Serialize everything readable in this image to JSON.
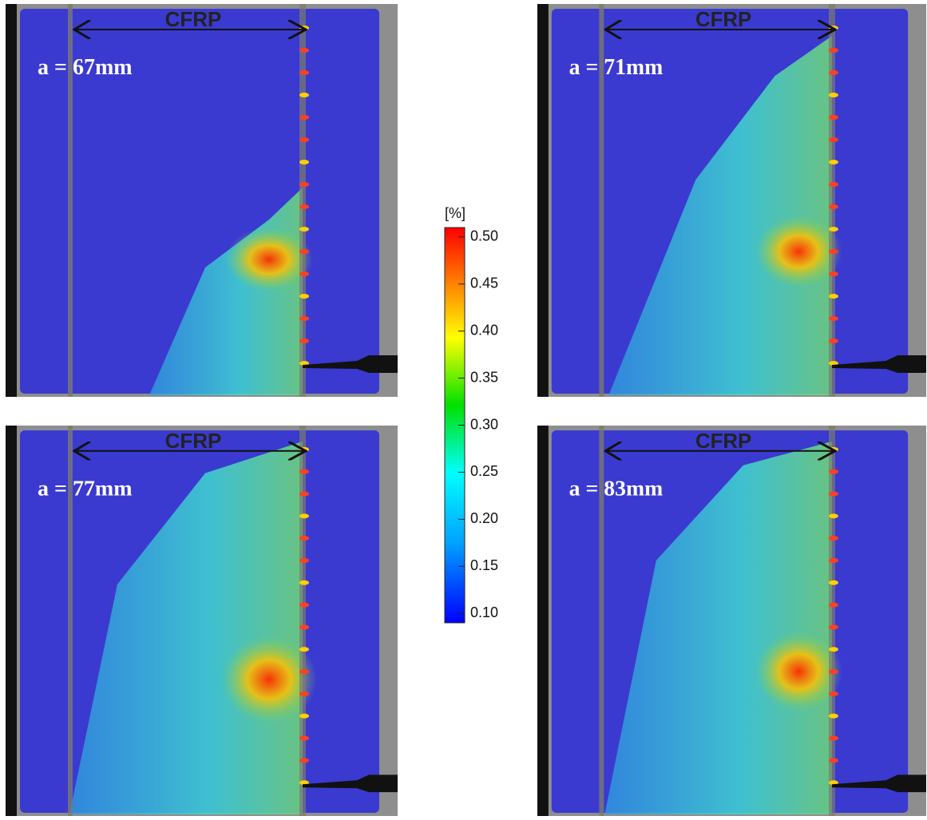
{
  "panels": [
    {
      "label": "CFRP",
      "crack_length": "a = 67mm"
    },
    {
      "label": "CFRP",
      "crack_length": "a = 71mm"
    },
    {
      "label": "CFRP",
      "crack_length": "a = 77mm"
    },
    {
      "label": "CFRP",
      "crack_length": "a = 83mm"
    }
  ],
  "colorbar": {
    "unit": "[%]",
    "lim": [
      0.09,
      0.51
    ],
    "ticks": [
      {
        "value": 0.5,
        "label": "0.50"
      },
      0.45,
      {
        "value": 0.4,
        "label": "0.40"
      },
      0.35,
      {
        "value": 0.3,
        "label": "0.30"
      },
      0.25,
      {
        "value": 0.2,
        "label": "0.20"
      },
      0.15,
      {
        "value": 0.1,
        "label": "0.10"
      }
    ]
  }
}
